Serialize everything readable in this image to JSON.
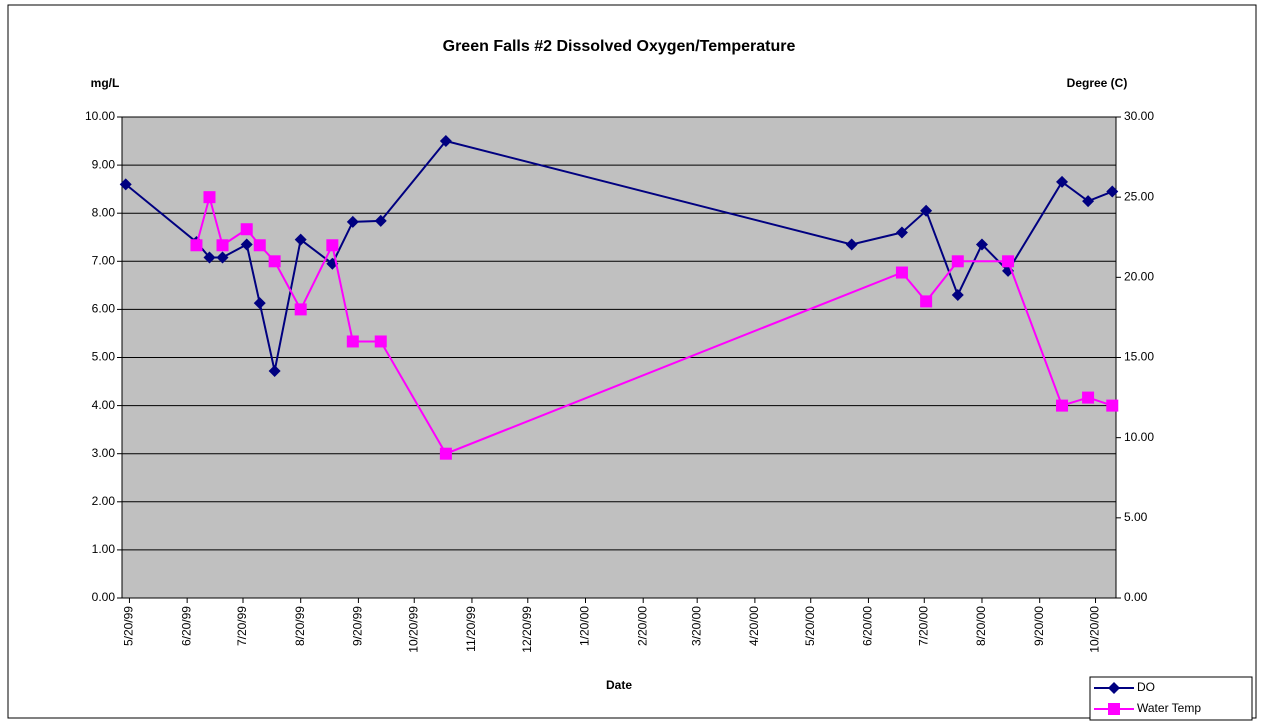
{
  "chart_data": {
    "type": "line",
    "title": "Green Falls #2 Dissolved Oxygen/Temperature",
    "y_label": "mg/L",
    "y2_label": "Degree (C)",
    "x_label": "Date",
    "xlim": [
      "5/16/99",
      "10/31/00"
    ],
    "xticks": [
      "5/20/99",
      "6/20/99",
      "7/20/99",
      "8/20/99",
      "9/20/99",
      "10/20/99",
      "11/20/99",
      "12/20/99",
      "1/20/00",
      "2/20/00",
      "3/20/00",
      "4/20/00",
      "5/20/00",
      "6/20/00",
      "7/20/00",
      "8/20/00",
      "9/20/00",
      "10/20/00"
    ],
    "ylim": [
      0,
      10
    ],
    "yticks": [
      {
        "value": 0,
        "label": "0.00"
      },
      {
        "value": 1,
        "label": "1.00"
      },
      {
        "value": 2,
        "label": "2.00"
      },
      {
        "value": 3,
        "label": "3.00"
      },
      {
        "value": 4,
        "label": "4.00"
      },
      {
        "value": 5,
        "label": "5.00"
      },
      {
        "value": 6,
        "label": "6.00"
      },
      {
        "value": 7,
        "label": "7.00"
      },
      {
        "value": 8,
        "label": "8.00"
      },
      {
        "value": 9,
        "label": "9.00"
      },
      {
        "value": 10,
        "label": "10.00"
      }
    ],
    "y2lim": [
      0,
      30
    ],
    "y2ticks": [
      {
        "value": 0,
        "label": "0.00"
      },
      {
        "value": 5,
        "label": "5.00"
      },
      {
        "value": 10,
        "label": "10.00"
      },
      {
        "value": 15,
        "label": "15.00"
      },
      {
        "value": 20,
        "label": "20.00"
      },
      {
        "value": 25,
        "label": "25.00"
      },
      {
        "value": 30,
        "label": "30.00"
      }
    ],
    "grid": true,
    "legend": "bottom-right",
    "series": [
      {
        "name": "DO",
        "color": "#000080",
        "marker": "diamond",
        "x": [
          "5/18/99",
          "6/25/99",
          "7/2/99",
          "7/9/99",
          "7/22/99",
          "7/29/99",
          "8/6/99",
          "8/20/99",
          "9/6/99",
          "9/17/99",
          "10/2/99",
          "11/6/99",
          "6/11/00",
          "7/8/00",
          "7/21/00",
          "8/7/00",
          "8/20/00",
          "9/3/00",
          "10/2/00",
          "10/16/00",
          "10/29/00"
        ],
        "values": [
          8.6,
          7.4,
          7.08,
          7.08,
          7.35,
          6.13,
          4.72,
          7.45,
          6.95,
          7.82,
          7.84,
          9.5,
          7.35,
          7.6,
          8.05,
          6.3,
          7.35,
          6.8,
          8.65,
          8.25,
          8.45
        ]
      },
      {
        "name": "Water Temp",
        "color": "#ff00ff",
        "marker": "square",
        "axis": "y2",
        "x": [
          "6/25/99",
          "7/2/99",
          "7/9/99",
          "7/22/99",
          "7/29/99",
          "8/6/99",
          "8/20/99",
          "9/6/99",
          "9/17/99",
          "10/2/99",
          "11/6/99",
          "7/8/00",
          "7/21/00",
          "8/7/00",
          "9/3/00",
          "10/2/00",
          "10/16/00",
          "10/29/00"
        ],
        "values": [
          22,
          25,
          22,
          23,
          22,
          21,
          18,
          22,
          16,
          16,
          9,
          20.3,
          18.5,
          21,
          21,
          12,
          12.5,
          12
        ]
      }
    ]
  }
}
